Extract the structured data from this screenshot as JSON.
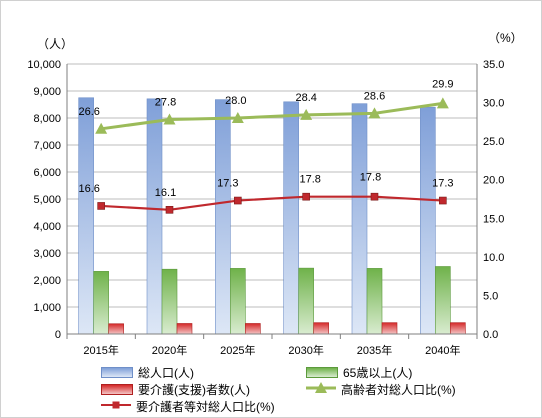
{
  "chart_data": {
    "type": "bar",
    "categories": [
      "2015年",
      "2020年",
      "2025年",
      "2030年",
      "2035年",
      "2040年"
    ],
    "y_left_unit": "（人）",
    "y_right_unit": "（%）",
    "ylim_left": [
      0,
      10000
    ],
    "ylim_right": [
      0,
      35
    ],
    "left_ticks": [
      "0",
      "1,000",
      "2,000",
      "3,000",
      "4,000",
      "5,000",
      "6,000",
      "7,000",
      "8,000",
      "9,000",
      "10,000"
    ],
    "right_ticks": [
      "0.0",
      "5.0",
      "10.0",
      "15.0",
      "20.0",
      "25.0",
      "30.0",
      "35.0"
    ],
    "grid": true,
    "legend_position": "bottom",
    "series": [
      {
        "name": "総人口(人)",
        "kind": "bar",
        "axis": "left",
        "color": "#8eaadc",
        "values": [
          8750,
          8710,
          8680,
          8600,
          8530,
          8400
        ]
      },
      {
        "name": "65歳以上(人)",
        "kind": "bar",
        "axis": "left",
        "color": "#8cc46c",
        "values": [
          2320,
          2400,
          2430,
          2440,
          2430,
          2500
        ]
      },
      {
        "name": "要介護(支援)者数(人)",
        "kind": "bar",
        "axis": "left",
        "color": "#e03c3c",
        "values": [
          380,
          390,
          390,
          420,
          420,
          420
        ]
      },
      {
        "name": "高齢者対総人口比(%)",
        "kind": "line",
        "axis": "right",
        "color": "#9bbb59",
        "marker": "triangle",
        "values": [
          26.6,
          27.8,
          28.0,
          28.4,
          28.6,
          29.9
        ],
        "labels": [
          "26.6",
          "27.8",
          "28.0",
          "28.4",
          "28.6",
          "29.9"
        ]
      },
      {
        "name": "要介護者等対総人口比(%)",
        "kind": "line",
        "axis": "right",
        "color": "#c0282d",
        "marker": "square",
        "values": [
          16.6,
          16.1,
          17.3,
          17.8,
          17.8,
          17.3
        ],
        "labels": [
          "16.6",
          "16.1",
          "17.3",
          "17.8",
          "17.8",
          "17.3"
        ]
      }
    ]
  }
}
